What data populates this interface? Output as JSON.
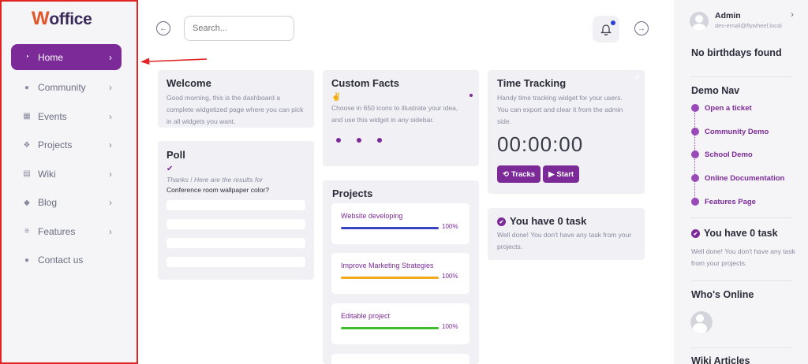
{
  "app": {
    "logo_letter": "W",
    "logo_rest": "office"
  },
  "sidebar": {
    "items": [
      {
        "label": "Home",
        "icon": "dashboard-icon",
        "glyph": "◔",
        "chevron": "›"
      },
      {
        "label": "Community",
        "icon": "users-icon",
        "glyph": "●",
        "chevron": "›"
      },
      {
        "label": "Events",
        "icon": "calendar-icon",
        "glyph": "▦",
        "chevron": "›"
      },
      {
        "label": "Projects",
        "icon": "cubes-icon",
        "glyph": "❖",
        "chevron": "›"
      },
      {
        "label": "Wiki",
        "icon": "archive-icon",
        "glyph": "▤",
        "chevron": "›"
      },
      {
        "label": "Blog",
        "icon": "comments-icon",
        "glyph": "◆",
        "chevron": "›"
      },
      {
        "label": "Features",
        "icon": "layers-icon",
        "glyph": "≡",
        "chevron": "›"
      },
      {
        "label": "Contact us",
        "icon": "comment-icon",
        "glyph": "●",
        "chevron": ""
      }
    ]
  },
  "header": {
    "search_placeholder": "Search...",
    "back_glyph": "←",
    "forward_glyph": "→"
  },
  "welcome": {
    "title": "Welcome",
    "text": "Good morning, this is the dashboard a complete widgetized page where you can pick in all widgets you want."
  },
  "poll": {
    "title": "Poll",
    "check_glyph": "✔",
    "thanks": "Thanks ! Here are the results for",
    "question": "Conference room wallpaper color?"
  },
  "custom_facts": {
    "title": "Custom Facts",
    "icon_glyph": "✌",
    "text": "Choose in 650 icons to illustrate your idea, and use this widget in any sidebar."
  },
  "projects": {
    "title": "Projects",
    "items": [
      {
        "name": "Website developing",
        "percent": "100%",
        "progress": 1.0,
        "color": "#3a44c0"
      },
      {
        "name": "Improve Marketing Strategies",
        "percent": "100%",
        "progress": 1.0,
        "color": "#f2a91e"
      },
      {
        "name": "Editable project",
        "percent": "100%",
        "progress": 1.0,
        "color": "#3cbf2a"
      }
    ]
  },
  "time_tracking": {
    "title": "Time Tracking",
    "text": "Handy time tracking widget for your users. You can export and clear it from the admin side.",
    "timer": "00:00:00",
    "tracks_label": "Tracks",
    "start_label": "Start",
    "close_glyph": "✕"
  },
  "tasks_widget": {
    "title": "You have 0 task",
    "text": "Well done! You don't have any task from your projects."
  },
  "right_panel": {
    "user_name": "Admin",
    "user_email": "dev-email@flywheel.local",
    "birthdays": "No birthdays found",
    "demo_nav_title": "Demo Nav",
    "demo_nav_items": [
      "Open a ticket",
      "Community Demo",
      "School Demo",
      "Online Documentation",
      "Features Page"
    ],
    "tasks_title": "You have 0 task",
    "tasks_text": "Well done! You don't have any task from your projects.",
    "whos_online_title": "Who's Online",
    "wiki_title": "Wiki Articles"
  },
  "colors": {
    "accent": "#7b2a98",
    "annotation": "#e02424"
  }
}
